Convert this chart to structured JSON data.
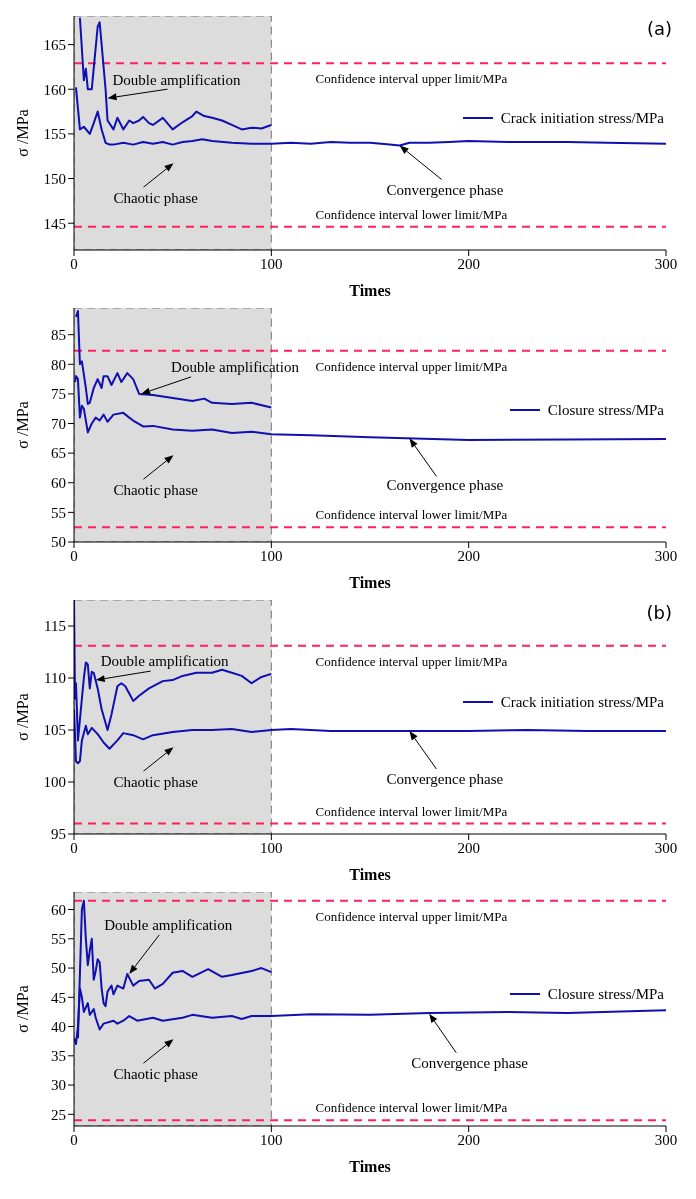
{
  "chart_data": [
    {
      "type": "line",
      "xlabel": "Times",
      "ylabel": "σ /MPa",
      "xlim": [
        0,
        300
      ],
      "xticks": [
        0,
        100,
        200,
        300
      ],
      "ylim": [
        142,
        168.2
      ],
      "yticks": [
        145,
        150,
        155,
        160,
        165
      ],
      "legend": "right",
      "grid": false,
      "series": [
        {
          "name": "Crack initiation stress/MPa",
          "color": "#1010b0",
          "x": [
            1,
            3,
            5,
            8,
            10,
            12,
            14,
            16,
            18,
            20,
            25,
            30,
            35,
            40,
            45,
            50,
            55,
            60,
            65,
            70,
            80,
            90,
            100,
            110,
            120,
            130,
            140,
            150,
            160,
            165,
            170,
            180,
            190,
            200,
            220,
            250,
            270,
            300
          ],
          "values": [
            160.2,
            155.5,
            155.8,
            155,
            156.2,
            157.5,
            155.5,
            154,
            153.8,
            153.8,
            154,
            153.8,
            154.1,
            153.9,
            154.1,
            153.8,
            154.1,
            154.2,
            154.4,
            154.2,
            154,
            153.9,
            153.9,
            154,
            153.9,
            154.1,
            154,
            154,
            153.8,
            153.7,
            154,
            154,
            154.1,
            154.2,
            154.1,
            154.1,
            154,
            153.9
          ]
        },
        {
          "color": "#1010b0",
          "x": [
            3,
            5,
            6,
            7,
            9,
            12,
            13,
            16,
            17,
            20,
            22,
            25,
            28,
            30,
            33,
            35,
            38,
            40,
            45,
            50,
            55,
            60,
            62,
            66,
            70,
            75,
            80,
            85,
            90,
            95,
            100
          ],
          "values": [
            168,
            161,
            162.3,
            160,
            160,
            167,
            167.5,
            160,
            156.5,
            155.5,
            156.8,
            155.5,
            156.5,
            156.2,
            156.5,
            156.9,
            156.2,
            156,
            156.8,
            155.5,
            156.3,
            157,
            157.5,
            157,
            156.8,
            156.5,
            156,
            155.5,
            155.7,
            155.6,
            156
          ]
        }
      ],
      "ref_lines": [
        {
          "axis": "y",
          "value": 162.9,
          "label": "Confidence interval upper limit/MPa",
          "color": "#ff2060",
          "line_style": "dashed"
        },
        {
          "axis": "y",
          "value": 144.6,
          "label": "Confidence interval lower limit/MPa",
          "color": "#ff2060",
          "line_style": "dashed"
        }
      ],
      "bands": [
        {
          "axis": "x",
          "from": 0,
          "to": 100,
          "color": "#dcdcdc",
          "label": "Chaotic phase"
        }
      ],
      "annotations": [
        {
          "text": "Double amplification",
          "x": 17,
          "y": 159
        },
        {
          "text": "Convergence phase",
          "x": 165,
          "y": 153.7
        },
        "(a)"
      ]
    },
    {
      "type": "line",
      "xlabel": "Times",
      "ylabel": "σ /MPa",
      "xlim": [
        0,
        300
      ],
      "xticks": [
        0,
        100,
        200,
        300
      ],
      "ylim": [
        50,
        89.5
      ],
      "yticks": [
        50,
        55,
        60,
        65,
        70,
        75,
        80,
        85
      ],
      "legend": "right",
      "grid": false,
      "series": [
        {
          "name": "Closure stress/MPa",
          "color": "#1010b0",
          "x": [
            0.5,
            1,
            2,
            3,
            4,
            5,
            7,
            9,
            11,
            13,
            15,
            17,
            20,
            25,
            28,
            30,
            35,
            40,
            50,
            60,
            70,
            80,
            90,
            100,
            120,
            150,
            200,
            250,
            300
          ],
          "values": [
            77,
            78,
            77.5,
            71,
            73,
            72.5,
            68.5,
            70,
            71,
            70.5,
            71.5,
            70.3,
            71.5,
            71.8,
            71,
            70.5,
            69.5,
            69.6,
            69,
            68.8,
            69,
            68.4,
            68.6,
            68.2,
            68,
            67.7,
            67.2,
            67.3,
            67.4
          ]
        },
        {
          "color": "#1010b0",
          "x": [
            1,
            2,
            3,
            4,
            6,
            7,
            8,
            10,
            12,
            14,
            15,
            17,
            19,
            22,
            24,
            27,
            30,
            33,
            40,
            50,
            60,
            66,
            70,
            80,
            90,
            100
          ],
          "values": [
            88,
            89,
            80,
            80.5,
            76,
            73.3,
            73.5,
            76,
            77.5,
            76,
            78,
            78,
            76.5,
            78.5,
            77,
            78.5,
            77.5,
            75,
            74.8,
            74.3,
            73.8,
            74.2,
            73.5,
            73.3,
            73.5,
            72.7
          ]
        }
      ],
      "ref_lines": [
        {
          "axis": "y",
          "value": 82.3,
          "label": "Confidence interval upper limit/MPa",
          "color": "#ff2060",
          "line_style": "dashed"
        },
        {
          "axis": "y",
          "value": 52.5,
          "label": "Confidence interval lower limit/MPa",
          "color": "#ff2060",
          "line_style": "dashed"
        }
      ],
      "bands": [
        {
          "axis": "x",
          "from": 0,
          "to": 100,
          "color": "#dcdcdc",
          "label": "Chaotic phase"
        }
      ],
      "annotations": [
        {
          "text": "Double amplification",
          "x": 34,
          "y": 75
        },
        {
          "text": "Convergence phase",
          "x": 170,
          "y": 67.5
        }
      ]
    },
    {
      "type": "line",
      "xlabel": "Times",
      "ylabel": "σ /MPa",
      "xlim": [
        0,
        300
      ],
      "xticks": [
        0,
        100,
        200,
        300
      ],
      "ylim": [
        95,
        117.5
      ],
      "yticks": [
        95,
        100,
        105,
        110,
        115
      ],
      "legend": "right",
      "grid": false,
      "series": [
        {
          "name": "Crack initiation stress/MPa",
          "color": "#1010b0",
          "x": [
            0,
            1,
            2,
            3,
            4,
            6,
            7,
            9,
            12,
            15,
            18,
            22,
            25,
            30,
            35,
            40,
            50,
            60,
            70,
            80,
            90,
            100,
            110,
            130,
            160,
            200,
            230,
            260,
            300
          ],
          "values": [
            107,
            102,
            101.8,
            102,
            104,
            105.4,
            104.6,
            105.2,
            104.6,
            103.8,
            103.2,
            104,
            104.7,
            104.5,
            104.1,
            104.5,
            104.8,
            105,
            105,
            105.1,
            104.8,
            105,
            105.1,
            104.9,
            104.9,
            104.9,
            105,
            104.9,
            104.9
          ]
        },
        {
          "color": "#1010b0",
          "x": [
            0,
            0.5,
            1,
            2,
            3,
            5,
            6,
            7,
            8,
            9,
            10,
            12,
            14,
            17,
            19,
            22,
            24,
            26,
            28,
            30,
            33,
            38,
            45,
            50,
            55,
            62,
            70,
            75,
            80,
            85,
            90,
            95,
            100
          ],
          "values": [
            117.5,
            108,
            109.5,
            104,
            106,
            110,
            111.5,
            111.3,
            109,
            110.6,
            110.5,
            109,
            107,
            105,
            106.5,
            109.2,
            109.5,
            109.2,
            108.5,
            107.8,
            108.3,
            109,
            109.7,
            109.8,
            110.2,
            110.5,
            110.5,
            110.8,
            110.5,
            110.2,
            109.5,
            110.1,
            110.4
          ]
        }
      ],
      "ref_lines": [
        {
          "axis": "y",
          "value": 113.1,
          "label": "Confidence interval upper limit/MPa",
          "color": "#ff2060",
          "line_style": "dashed"
        },
        {
          "axis": "y",
          "value": 96,
          "label": "Confidence interval lower limit/MPa",
          "color": "#ff2060",
          "line_style": "dashed"
        }
      ],
      "bands": [
        {
          "axis": "x",
          "from": 0,
          "to": 100,
          "color": "#dcdcdc",
          "label": "Chaotic phase"
        }
      ],
      "annotations": [
        {
          "text": "Double amplification",
          "x": 11,
          "y": 109.8
        },
        {
          "text": "Convergence phase",
          "x": 170,
          "y": 104.9
        },
        "(b)"
      ]
    },
    {
      "type": "line",
      "xlabel": "Times",
      "ylabel": "σ /MPa",
      "xlim": [
        0,
        300
      ],
      "xticks": [
        0,
        100,
        200,
        300
      ],
      "ylim": [
        23,
        63
      ],
      "yticks": [
        25,
        30,
        35,
        40,
        45,
        50,
        55,
        60
      ],
      "legend": "right",
      "grid": false,
      "series": [
        {
          "name": "Closure stress/MPa",
          "color": "#1010b0",
          "x": [
            0,
            1,
            2,
            3,
            4,
            5,
            7,
            8,
            10,
            11,
            13,
            15,
            20,
            22,
            25,
            28,
            32,
            40,
            45,
            55,
            60,
            70,
            80,
            85,
            90,
            100,
            120,
            150,
            180,
            220,
            250,
            300
          ],
          "values": [
            38,
            37,
            40,
            46.5,
            45,
            42.5,
            44,
            42,
            43,
            41.5,
            39.5,
            40.5,
            41,
            40.5,
            41,
            41.8,
            41,
            41.5,
            41,
            41.5,
            42,
            41.5,
            41.8,
            41.3,
            41.8,
            41.8,
            42.1,
            42,
            42.3,
            42.5,
            42.3,
            42.8
          ]
        },
        {
          "color": "#1010b0",
          "x": [
            2,
            4,
            5,
            6,
            7,
            8,
            9,
            10,
            11,
            12,
            13,
            14,
            15,
            16,
            17,
            19,
            20,
            22,
            25,
            27,
            30,
            33,
            38,
            41,
            45,
            50,
            55,
            60,
            68,
            75,
            80,
            90,
            95,
            100
          ],
          "values": [
            38,
            60,
            61.5,
            55,
            50.5,
            53,
            55,
            48,
            49.5,
            51.5,
            51,
            46.5,
            44,
            43.5,
            46,
            47,
            45.5,
            47,
            46.5,
            49,
            47,
            47.8,
            48,
            46.5,
            47.3,
            49.2,
            49.5,
            48.5,
            49.8,
            48.5,
            48.8,
            49.5,
            50,
            49.3
          ]
        }
      ],
      "ref_lines": [
        {
          "axis": "y",
          "value": 61.5,
          "label": "Confidence interval upper limit/MPa",
          "color": "#ff2060",
          "line_style": "dashed"
        },
        {
          "axis": "y",
          "value": 24,
          "label": "Confidence interval lower limit/MPa",
          "color": "#ff2060",
          "line_style": "dashed"
        }
      ],
      "bands": [
        {
          "axis": "x",
          "from": 0,
          "to": 100,
          "color": "#dcdcdc",
          "label": "Chaotic phase"
        }
      ],
      "annotations": [
        {
          "text": "Double amplification",
          "x": 28,
          "y": 49
        },
        {
          "text": "Convergence phase",
          "x": 180,
          "y": 42.2
        }
      ]
    }
  ]
}
